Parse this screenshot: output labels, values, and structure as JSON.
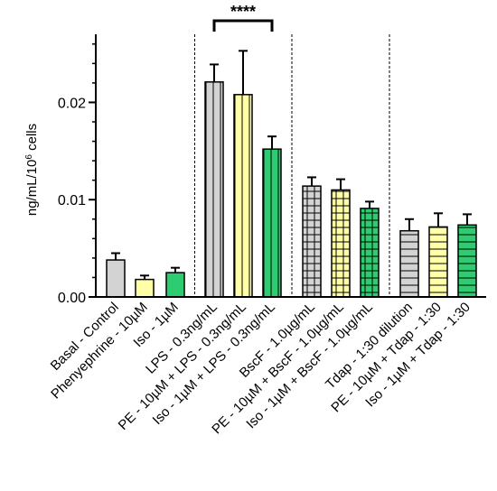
{
  "chart_data": {
    "type": "bar",
    "title": "",
    "xlabel": "",
    "ylabel": "ng/mL/10",
    "ylabel_sup": "6",
    "ylabel_suffix": " cells",
    "ylim": [
      0,
      0.027
    ],
    "yticks": [
      {
        "value": 0.0,
        "label": "0.00"
      },
      {
        "value": 0.01,
        "label": "0.01"
      },
      {
        "value": 0.02,
        "label": "0.02"
      }
    ],
    "minor_tick_step": 0.002,
    "grid": false,
    "categories": [
      "Basal - Control",
      "Phenyephrine - 10µM",
      "Iso - 1µM",
      "LPS - 0.3ng/mL",
      "PE - 10µM + LPS - 0.3ng/mL",
      "Iso - 1µM + LPS - 0.3ng/mL",
      "BscF - 1.0µg/mL",
      "PE - 10µM + BscF - 1.0µg/mL",
      "Iso - 1µM + BscF - 1.0µg/mL",
      "Tdap - 1:30 dilution",
      "PE - 10µM + Tdap - 1:30",
      "Iso - 1µM + Tdap - 1:30"
    ],
    "values": [
      0.0038,
      0.0018,
      0.0025,
      0.0221,
      0.0208,
      0.0152,
      0.0114,
      0.011,
      0.0091,
      0.0068,
      0.0072,
      0.0074
    ],
    "errors": [
      0.0007,
      0.0004,
      0.0005,
      0.0018,
      0.0045,
      0.0013,
      0.0009,
      0.0011,
      0.0007,
      0.0012,
      0.0014,
      0.0011
    ],
    "colors": [
      "#d3d3d3",
      "#ffffa8",
      "#2ecc71",
      "#d3d3d3",
      "#ffffa8",
      "#2ecc71",
      "#d3d3d3",
      "#ffffa8",
      "#2ecc71",
      "#d3d3d3",
      "#ffffa8",
      "#2ecc71"
    ],
    "patterns": [
      "none",
      "none",
      "none",
      "vertical",
      "vertical",
      "vertical",
      "grid",
      "grid",
      "grid",
      "horizontal",
      "horizontal",
      "horizontal"
    ],
    "group_separators_after": [
      2,
      5,
      8
    ],
    "significance": [
      {
        "from": 3,
        "to": 5,
        "label": "****"
      }
    ]
  }
}
